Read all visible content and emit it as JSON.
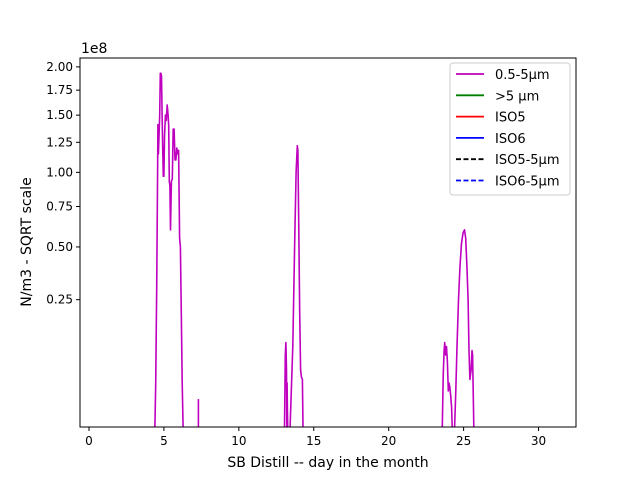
{
  "chart_data": {
    "type": "line",
    "title": "",
    "xlabel": "SB Distill -- day in the month",
    "ylabel": "N/m3 - SQRT scale",
    "y_scale": "sqrt",
    "y_multiplier_label": "1e8",
    "xlim": [
      -0.6,
      32.5
    ],
    "ylim": [
      0,
      210000000
    ],
    "x_ticks": [
      0,
      5,
      10,
      15,
      20,
      25,
      30
    ],
    "x_tick_labels": [
      "0",
      "5",
      "10",
      "15",
      "20",
      "25",
      "30"
    ],
    "y_ticks": [
      25000000,
      50000000,
      75000000,
      100000000,
      125000000,
      150000000,
      175000000,
      200000000
    ],
    "y_tick_labels": [
      "0.25",
      "0.50",
      "0.75",
      "1.00",
      "1.25",
      "1.50",
      "1.75",
      "2.00"
    ],
    "grid": false,
    "legend_position": "top-right",
    "series": [
      {
        "name": "0.5-5µm",
        "color": "#bf00bf",
        "dash": "solid",
        "points": [
          [
            4.4,
            0
          ],
          [
            4.45,
            2800000
          ],
          [
            4.52,
            30000000
          ],
          [
            4.58,
            100000000
          ],
          [
            4.6,
            141000000
          ],
          [
            4.63,
            115000000
          ],
          [
            4.67,
            130000000
          ],
          [
            4.72,
            150000000
          ],
          [
            4.76,
            193000000
          ],
          [
            4.8,
            193000000
          ],
          [
            4.84,
            190000000
          ],
          [
            4.88,
            150000000
          ],
          [
            4.92,
            120000000
          ],
          [
            4.96,
            97000000
          ],
          [
            5.0,
            97000000
          ],
          [
            5.04,
            130000000
          ],
          [
            5.1,
            150000000
          ],
          [
            5.16,
            145000000
          ],
          [
            5.22,
            160000000
          ],
          [
            5.28,
            150000000
          ],
          [
            5.32,
            140000000
          ],
          [
            5.36,
            93000000
          ],
          [
            5.4,
            90000000
          ],
          [
            5.44,
            60000000
          ],
          [
            5.5,
            93000000
          ],
          [
            5.56,
            95000000
          ],
          [
            5.62,
            137000000
          ],
          [
            5.68,
            137000000
          ],
          [
            5.74,
            110000000
          ],
          [
            5.8,
            110000000
          ],
          [
            5.86,
            120000000
          ],
          [
            5.92,
            115000000
          ],
          [
            5.98,
            118000000
          ],
          [
            6.05,
            55000000
          ],
          [
            6.1,
            50000000
          ],
          [
            6.16,
            20000000
          ],
          [
            6.22,
            3000000
          ],
          [
            6.28,
            0
          ]
        ]
      },
      {
        "name": "0.5-5µm",
        "color": "#bf00bf",
        "dash": "solid",
        "points": [
          [
            7.3,
            0
          ],
          [
            7.3,
            1200000
          ]
        ]
      },
      {
        "name": "0.5-5µm",
        "color": "#bf00bf",
        "dash": "solid",
        "points": [
          [
            13.05,
            0
          ],
          [
            13.1,
            8000000
          ],
          [
            13.14,
            11000000
          ],
          [
            13.18,
            5000000
          ],
          [
            13.2,
            0
          ],
          [
            13.22,
            3000000
          ],
          [
            13.24,
            500000
          ],
          [
            13.26,
            0
          ]
        ]
      },
      {
        "name": "0.5-5µm",
        "color": "#bf00bf",
        "dash": "solid",
        "points": [
          [
            13.42,
            0
          ],
          [
            13.5,
            2000000
          ],
          [
            13.6,
            10000000
          ],
          [
            13.72,
            50000000
          ],
          [
            13.82,
            100000000
          ],
          [
            13.9,
            122000000
          ],
          [
            13.94,
            118000000
          ],
          [
            14.0,
            60000000
          ],
          [
            14.06,
            20000000
          ],
          [
            14.12,
            5000000
          ],
          [
            14.18,
            3800000
          ],
          [
            14.24,
            3500000
          ],
          [
            14.28,
            0
          ]
        ]
      },
      {
        "name": "0.5-5µm",
        "color": "#bf00bf",
        "dash": "solid",
        "points": [
          [
            23.58,
            0
          ],
          [
            23.64,
            4000000
          ],
          [
            23.7,
            9000000
          ],
          [
            23.74,
            11000000
          ],
          [
            23.8,
            8000000
          ],
          [
            23.86,
            10000000
          ],
          [
            23.92,
            6500000
          ],
          [
            23.98,
            2000000
          ],
          [
            24.02,
            3000000
          ],
          [
            24.08,
            2500000
          ],
          [
            24.14,
            1500000
          ],
          [
            24.2,
            600000
          ],
          [
            24.24,
            0
          ]
        ]
      },
      {
        "name": "0.5-5µm",
        "color": "#bf00bf",
        "dash": "solid",
        "points": [
          [
            24.4,
            0
          ],
          [
            24.48,
            2000000
          ],
          [
            24.56,
            10000000
          ],
          [
            24.66,
            25000000
          ],
          [
            24.76,
            40000000
          ],
          [
            24.86,
            52000000
          ],
          [
            24.96,
            58000000
          ],
          [
            25.06,
            60000000
          ],
          [
            25.14,
            55000000
          ],
          [
            25.22,
            40000000
          ],
          [
            25.3,
            25000000
          ],
          [
            25.36,
            9000000
          ],
          [
            25.42,
            3500000
          ],
          [
            25.5,
            5000000
          ],
          [
            25.56,
            9000000
          ],
          [
            25.6,
            8000000
          ],
          [
            25.64,
            2000000
          ],
          [
            25.68,
            0
          ]
        ]
      },
      {
        "name": ">5 µm",
        "color": "#008000",
        "dash": "solid",
        "points": []
      },
      {
        "name": "ISO5",
        "color": "#ff0000",
        "dash": "solid",
        "points": []
      },
      {
        "name": "ISO6",
        "color": "#0000ff",
        "dash": "solid",
        "points": []
      },
      {
        "name": "ISO5-5µm",
        "color": "#000000",
        "dash": "dashed",
        "points": []
      },
      {
        "name": "ISO6-5µm",
        "color": "#0000ff",
        "dash": "dashed",
        "points": []
      }
    ],
    "legend": [
      {
        "label": "0.5-5µm",
        "color": "#bf00bf",
        "dash": "solid"
      },
      {
        "label": ">5 µm",
        "color": "#008000",
        "dash": "solid"
      },
      {
        "label": "ISO5",
        "color": "#ff0000",
        "dash": "solid"
      },
      {
        "label": "ISO6",
        "color": "#0000ff",
        "dash": "solid"
      },
      {
        "label": "ISO5-5µm",
        "color": "#000000",
        "dash": "dashed"
      },
      {
        "label": "ISO6-5µm",
        "color": "#0000ff",
        "dash": "dashed"
      }
    ]
  }
}
